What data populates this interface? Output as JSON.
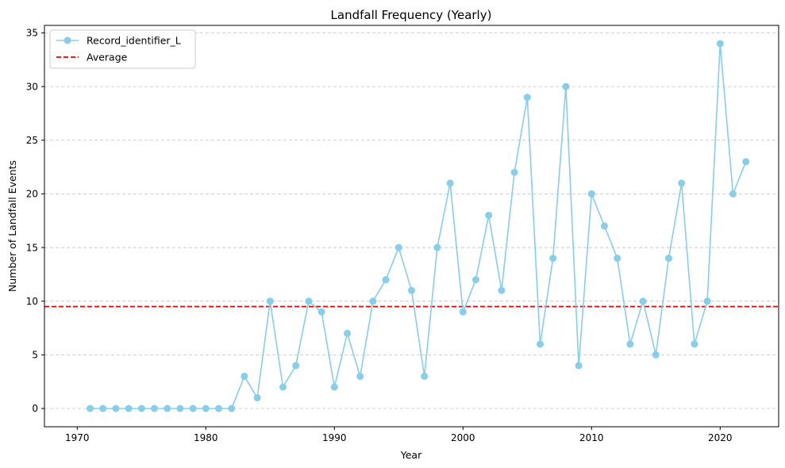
{
  "chart_data": {
    "type": "line",
    "title": "Landfall Frequency (Yearly)",
    "xlabel": "Year",
    "ylabel": "Number of Landfall Events",
    "xlim": [
      1967.45,
      2024.55
    ],
    "ylim": [
      -1.7,
      35.7
    ],
    "xticks": [
      1970,
      1980,
      1990,
      2000,
      2010,
      2020
    ],
    "yticks": [
      0,
      5,
      10,
      15,
      20,
      25,
      30,
      35
    ],
    "grid": "y-axis dashed",
    "legend_position": "top-left",
    "series": [
      {
        "name": "Record_identifier_L",
        "color": "#87ceeb",
        "marker": "circle",
        "x": [
          1971,
          1972,
          1973,
          1974,
          1975,
          1976,
          1977,
          1978,
          1979,
          1980,
          1981,
          1982,
          1983,
          1984,
          1985,
          1986,
          1987,
          1988,
          1989,
          1990,
          1991,
          1992,
          1993,
          1994,
          1995,
          1996,
          1997,
          1998,
          1999,
          2000,
          2001,
          2002,
          2003,
          2004,
          2005,
          2006,
          2007,
          2008,
          2009,
          2010,
          2011,
          2012,
          2013,
          2014,
          2015,
          2016,
          2017,
          2018,
          2019,
          2020,
          2021,
          2022
        ],
        "y": [
          0,
          0,
          0,
          0,
          0,
          0,
          0,
          0,
          0,
          0,
          0,
          0,
          3,
          1,
          10,
          2,
          4,
          10,
          9,
          2,
          7,
          3,
          10,
          12,
          15,
          11,
          3,
          15,
          21,
          9,
          12,
          18,
          11,
          22,
          29,
          6,
          14,
          30,
          4,
          20,
          17,
          14,
          6,
          10,
          5,
          14,
          21,
          6,
          10,
          34,
          20,
          23
        ]
      }
    ],
    "reference_lines": [
      {
        "name": "Average",
        "orientation": "horizontal",
        "value": 9.5,
        "color": "#e00000",
        "style": "dashed"
      }
    ]
  }
}
